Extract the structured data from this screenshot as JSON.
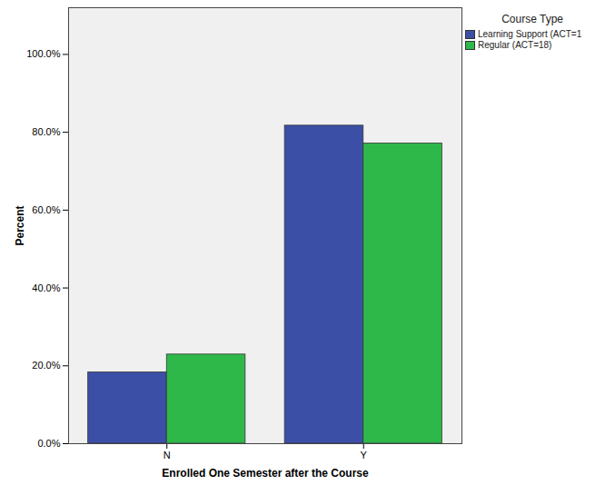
{
  "chart_data": {
    "type": "bar",
    "x_label": "Enrolled One Semester after the Course",
    "y_label": "Percent",
    "legend_title": "Course Type",
    "categories": [
      "N",
      "Y"
    ],
    "series": [
      {
        "name": "Learning Support (ACT=1",
        "color": "#3c4fa6",
        "values": [
          18.3,
          81.7
        ]
      },
      {
        "name": "Regular (ACT=18)",
        "color": "#2fb84a",
        "values": [
          22.9,
          77.1
        ]
      }
    ],
    "ylim": [
      0,
      112
    ],
    "yticks": [
      {
        "value": 0,
        "label": "0.0%"
      },
      {
        "value": 20,
        "label": "20.0%"
      },
      {
        "value": 40,
        "label": "40.0%"
      },
      {
        "value": 60,
        "label": "60.0%"
      },
      {
        "value": 80,
        "label": "80.0%"
      },
      {
        "value": 100,
        "label": "100.0%"
      }
    ],
    "legend": "right",
    "grid": false
  }
}
